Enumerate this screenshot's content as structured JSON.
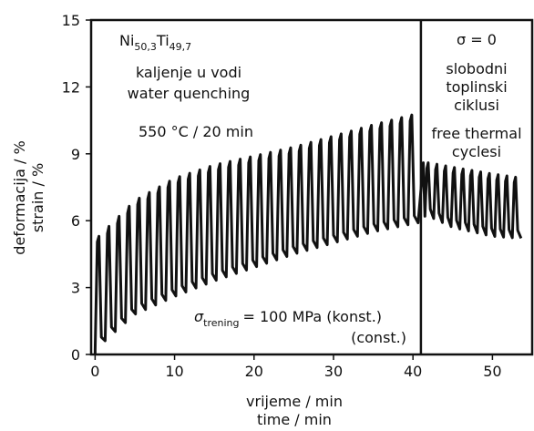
{
  "chart_data": {
    "type": "line",
    "xlabel_lines": [
      "vrijeme / min",
      "time / min"
    ],
    "ylabel_lines": [
      "deformacija / %",
      "strain / %"
    ],
    "xlim": [
      -0.5,
      55
    ],
    "ylim": [
      0,
      15
    ],
    "x_ticks": [
      0,
      10,
      20,
      30,
      40,
      50
    ],
    "y_ticks": [
      0,
      3,
      6,
      9,
      12,
      15
    ],
    "grid": false,
    "divider_x": 41,
    "series": [
      {
        "values_description": "cyclic strain vs time",
        "training_cycles": {
          "x_start": 0,
          "x_end": 41,
          "period": 1.27,
          "peaks": [
            [
              0.5,
              5.3
            ],
            [
              5,
              6.9
            ],
            [
              10,
              7.9
            ],
            [
              15,
              8.5
            ],
            [
              20,
              8.9
            ],
            [
              25,
              9.3
            ],
            [
              30,
              9.8
            ],
            [
              35,
              10.3
            ],
            [
              40.5,
              10.8
            ]
          ],
          "troughs": [
            [
              0.2,
              0.2
            ],
            [
              1.5,
              0.7
            ],
            [
              5,
              1.8
            ],
            [
              10,
              2.6
            ],
            [
              15,
              3.3
            ],
            [
              20,
              3.9
            ],
            [
              25,
              4.5
            ],
            [
              30,
              5.0
            ],
            [
              35,
              5.5
            ],
            [
              40.5,
              5.9
            ]
          ]
        },
        "free_cycles": {
          "x_start": 41.5,
          "x_end": 54.5,
          "period": 1.1,
          "peaks": [
            [
              42,
              8.6
            ],
            [
              45,
              8.4
            ],
            [
              50,
              8.1
            ],
            [
              54,
              7.9
            ]
          ],
          "troughs": [
            [
              42,
              6.2
            ],
            [
              45,
              5.7
            ],
            [
              50,
              5.3
            ],
            [
              54,
              5.2
            ]
          ]
        }
      }
    ],
    "annotations": {
      "alloy_base1": "Ni",
      "alloy_sub1": "50,3",
      "alloy_base2": "Ti",
      "alloy_sub2": "49,7",
      "quench_hr": "kaljenje u vodi",
      "quench_en": "water quenching",
      "heat": "550 °C / 20 min",
      "sigma_zero": "σ = 0",
      "free_hr_1": "slobodni",
      "free_hr_2": "toplinski",
      "free_hr_3": "ciklusi",
      "free_en_1": "free thermal",
      "free_en_2": "cyclesi",
      "stress_sigma": "σ",
      "stress_sub": "trening",
      "stress_value": "= 100 MPa (konst.)",
      "stress_const": "(const.)"
    }
  }
}
